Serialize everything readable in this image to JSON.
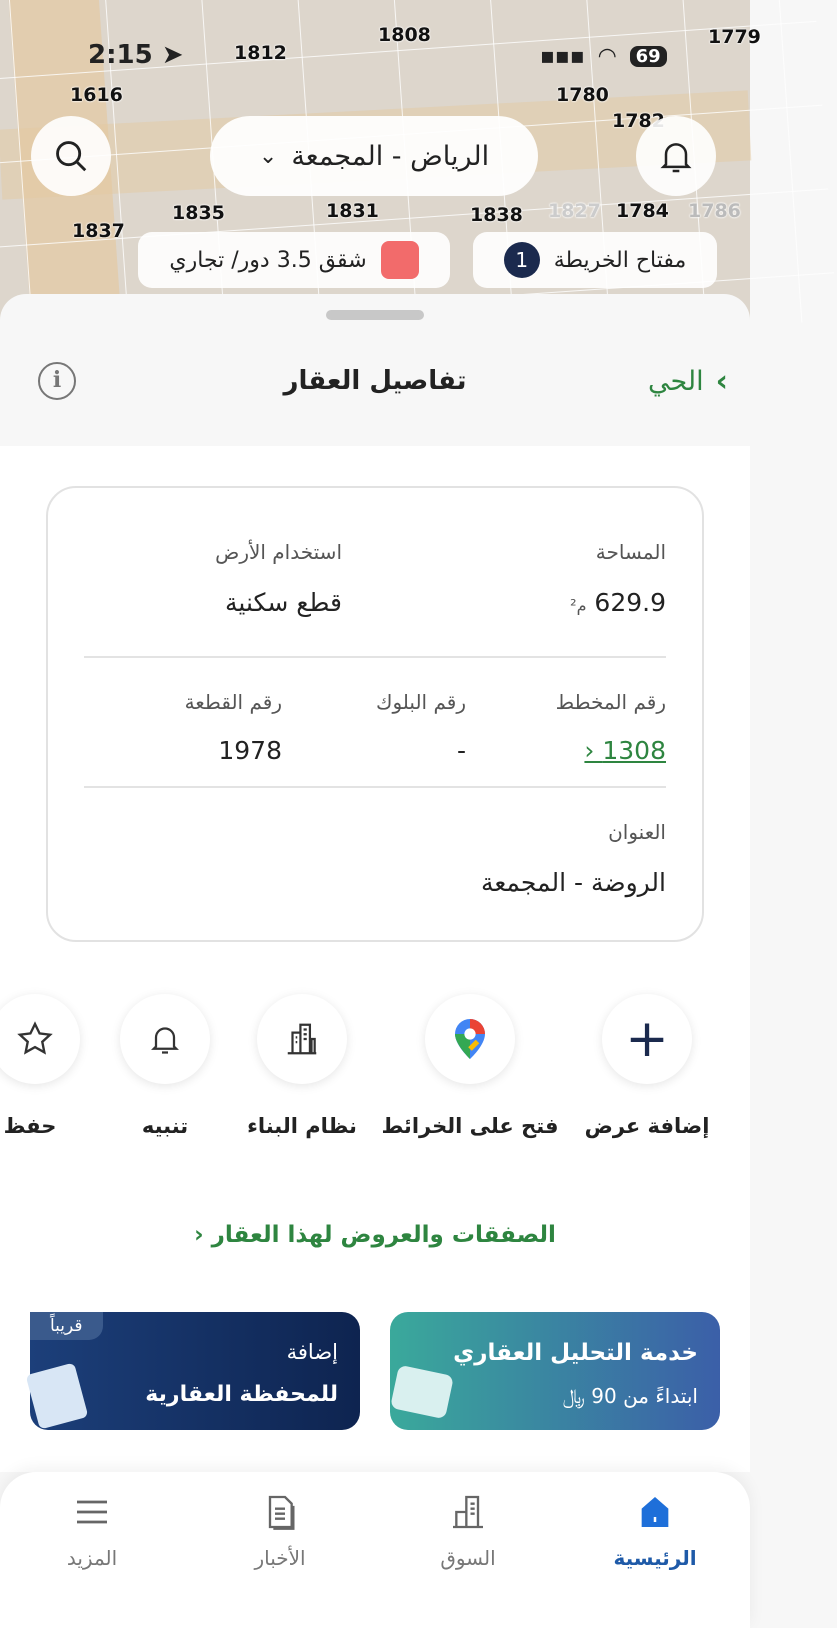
{
  "status_bar": {
    "time": "2:15",
    "battery": "69"
  },
  "map": {
    "plot_numbers": [
      "1616",
      "1812",
      "1808",
      "1780",
      "1779",
      "1782",
      "1827",
      "1784",
      "1831",
      "1835",
      "1837",
      "1786",
      "1838"
    ],
    "city_selector": "الرياض - المجمعة",
    "legend_label": "مفتاح الخريطة",
    "legend_count": "1",
    "zoning_label": "شقق 3.5 دور/ تجاري",
    "zoning_color": "#f26b6b"
  },
  "header": {
    "title": "تفاصيل العقار",
    "back_label": "الحي",
    "accent": "#2e8540"
  },
  "details": {
    "area_label": "المساحة",
    "area_value": "629.9",
    "area_unit": "م²",
    "land_use_label": "استخدام الأرض",
    "land_use_value": "قطع سكنية",
    "plan_label": "رقم المخطط",
    "plan_value": "1308",
    "block_label": "رقم البلوك",
    "block_value": "-",
    "plot_label": "رقم القطعة",
    "plot_value": "1978",
    "address_label": "العنوان",
    "address_value": "الروضة - المجمعة"
  },
  "actions": [
    {
      "label": "إضافة عرض",
      "icon": "plus-icon"
    },
    {
      "label": "فتح على الخرائط",
      "icon": "map-pin-icon"
    },
    {
      "label": "نظام البناء",
      "icon": "building-icon"
    },
    {
      "label": "تنبيه",
      "icon": "bell-icon"
    },
    {
      "label": "حفظ",
      "icon": "star-icon"
    }
  ],
  "deals_link": "الصفقات والعروض لهذا العقار",
  "promos": [
    {
      "title": "خدمة التحليل العقاري",
      "subtitle": "ابتداءً من 90 ﷼"
    },
    {
      "title": "إضافة",
      "subtitle": "للمحفظة العقارية",
      "badge": "قريباً"
    }
  ],
  "nav": [
    {
      "label": "الرئيسية",
      "icon": "home-icon",
      "active": true,
      "color": "#1e6fd9"
    },
    {
      "label": "السوق",
      "icon": "market-icon"
    },
    {
      "label": "الأخبار",
      "icon": "news-icon"
    },
    {
      "label": "المزيد",
      "icon": "menu-icon"
    }
  ]
}
